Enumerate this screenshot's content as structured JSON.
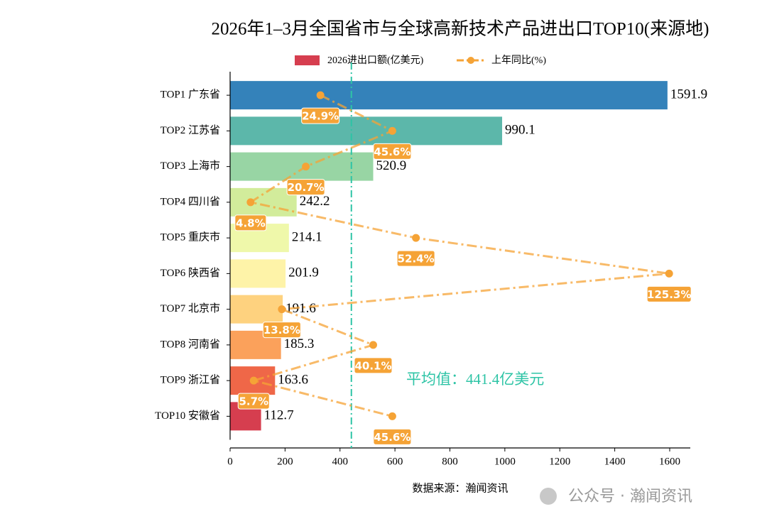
{
  "chart_data": {
    "type": "bar",
    "orientation": "horizontal",
    "title": "2026年1–3月全国省市与全球高新技术产品进出口TOP10(来源地)",
    "categories": [
      "TOP1 广东省",
      "TOP2 江苏省",
      "TOP3 上海市",
      "TOP4 四川省",
      "TOP5 重庆市",
      "TOP6 陕西省",
      "TOP7 北京市",
      "TOP8 河南省",
      "TOP9 浙江省",
      "TOP10 安徽省"
    ],
    "series": [
      {
        "name": "2026进出口额(亿美元)",
        "type": "bar",
        "colors": [
          "#3482ba",
          "#5cb7aa",
          "#98d5a4",
          "#d2ec9b",
          "#eff8aa",
          "#fef3a8",
          "#fed27f",
          "#fba15b",
          "#ef6748",
          "#d63e4f"
        ],
        "values": [
          1591.9,
          990.1,
          520.9,
          242.2,
          214.1,
          201.9,
          191.6,
          185.3,
          163.6,
          112.7
        ]
      },
      {
        "name": "上年同比(%)",
        "type": "line",
        "axis": "x2",
        "color": "#f5a336",
        "values": [
          24.9,
          45.6,
          20.7,
          4.8,
          52.4,
          125.3,
          13.8,
          40.1,
          5.7,
          45.6
        ],
        "value_labels": [
          "24.9%",
          "45.6%",
          "20.7%",
          "4.8%",
          "52.4%",
          "125.3%",
          "13.8%",
          "40.1%",
          "5.7%",
          "45.6%"
        ]
      }
    ],
    "xlim": [
      0,
      1675
    ],
    "xticks": [
      0,
      200,
      400,
      600,
      800,
      1000,
      1200,
      1400,
      1600
    ],
    "x2lim": [
      -1.1,
      131.4
    ],
    "average": 441.4,
    "average_color": "#2ec4a6",
    "average_label": "平均值：441.4亿美元",
    "source": "数据来源：瀚闻资讯",
    "watermark": "公众号 · 瀚闻资讯"
  }
}
